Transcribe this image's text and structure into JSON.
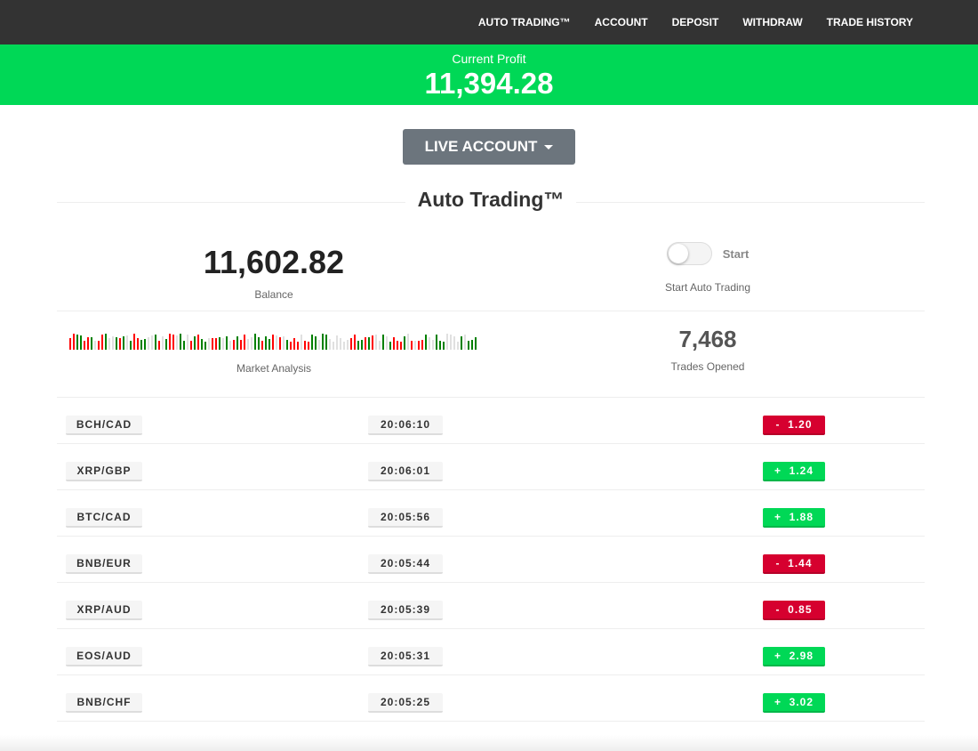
{
  "nav": [
    "AUTO TRADING™",
    "ACCOUNT",
    "DEPOSIT",
    "WITHDRAW",
    "TRADE HISTORY"
  ],
  "profit": {
    "label": "Current Profit",
    "value": "11,394.28"
  },
  "account_button": "LIVE ACCOUNT",
  "title": "Auto Trading™",
  "balance": {
    "value": "11,602.82",
    "label": "Balance"
  },
  "auto": {
    "toggle_label": "Start",
    "label": "Start Auto Trading",
    "enabled": false
  },
  "market": {
    "label": "Market Analysis"
  },
  "trades_opened": {
    "value": "7,468",
    "label": "Trades Opened"
  },
  "colors": {
    "positive": "#00d856",
    "negative": "#d6002f",
    "bar_up": "#008000",
    "bar_down": "#ff0000",
    "bar_neutral": "#e0e0e0"
  },
  "trades": [
    {
      "pair": "BCH/CAD",
      "time": "20:06:10",
      "change": "-  1.20",
      "dir": "down"
    },
    {
      "pair": "XRP/GBP",
      "time": "20:06:01",
      "change": "+  1.24",
      "dir": "up"
    },
    {
      "pair": "BTC/CAD",
      "time": "20:05:56",
      "change": "+  1.88",
      "dir": "up"
    },
    {
      "pair": "BNB/EUR",
      "time": "20:05:44",
      "change": "-  1.44",
      "dir": "down"
    },
    {
      "pair": "XRP/AUD",
      "time": "20:05:39",
      "change": "-  0.85",
      "dir": "down"
    },
    {
      "pair": "EOS/AUD",
      "time": "20:05:31",
      "change": "+  2.98",
      "dir": "up"
    },
    {
      "pair": "BNB/CHF",
      "time": "20:05:25",
      "change": "+  3.02",
      "dir": "up"
    }
  ]
}
